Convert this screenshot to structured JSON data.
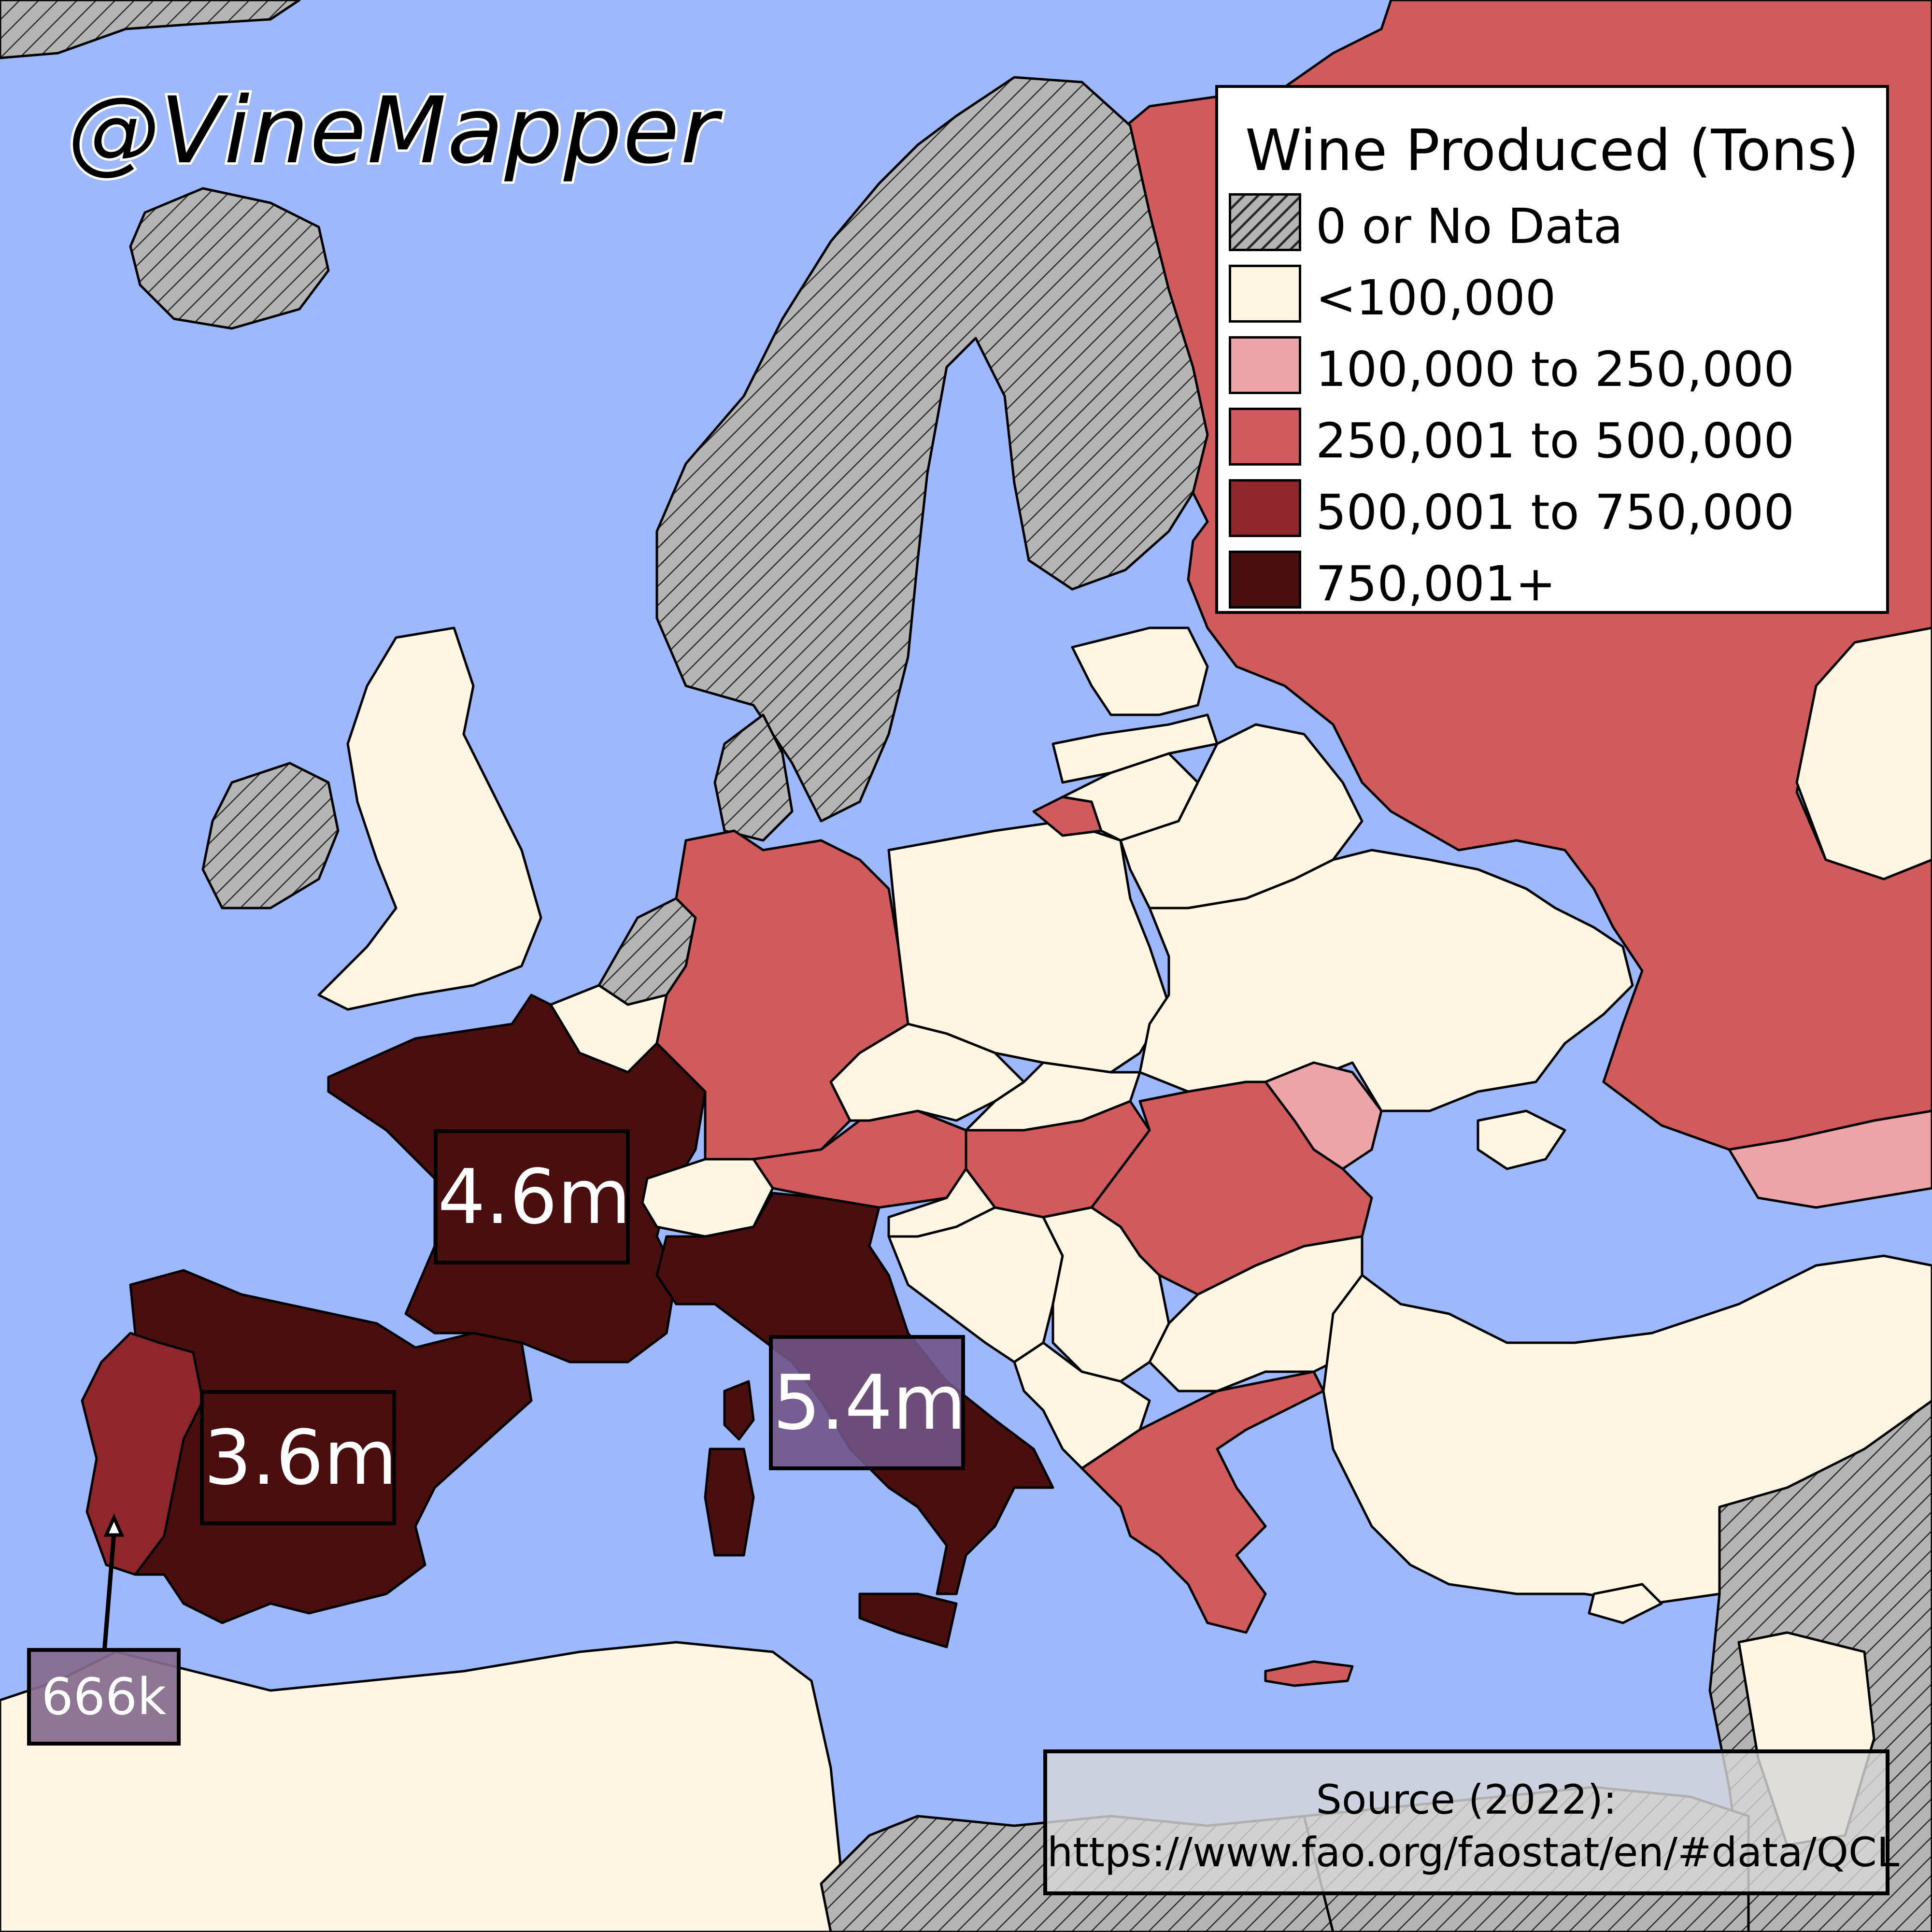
{
  "watermark": "@VineMapper",
  "legend": {
    "title": "Wine Produced (Tons)",
    "items": [
      {
        "label": "0 or No Data",
        "color": "#b4b4b4",
        "pattern": "hatched"
      },
      {
        "label": "<100,000",
        "color": "#fef6e2"
      },
      {
        "label": "100,000 to 250,000",
        "color": "#eda4a8"
      },
      {
        "label": "250,001 to 500,000",
        "color": "#d15a5c"
      },
      {
        "label": "500,001 to 750,000",
        "color": "#8f262b"
      },
      {
        "label": "750,001+",
        "color": "#4a0e0e"
      }
    ]
  },
  "callouts": {
    "france": "4.6m",
    "spain": "3.6m",
    "italy": "5.4m",
    "portugal": "666k"
  },
  "source": {
    "line1": "Source (2022):",
    "line2": "https://www.fao.org/faostat/en/#data/QCL"
  },
  "colors": {
    "sea": "#9db8fd",
    "no_data": "#b4b4b4",
    "low": "#fef6e2",
    "mid_low": "#eda4a8",
    "mid": "#d15a5c",
    "high": "#8f262b",
    "top": "#4a0e0e"
  }
}
